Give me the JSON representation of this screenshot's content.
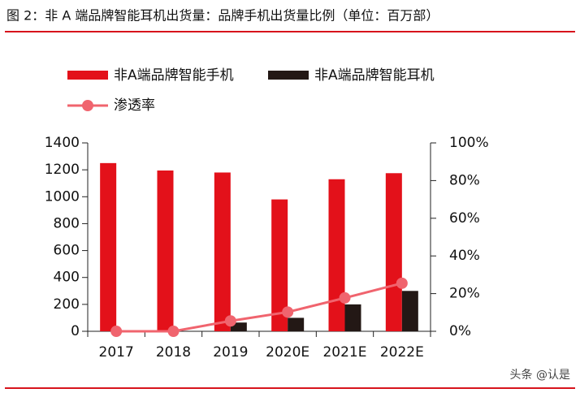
{
  "chart_data": {
    "type": "bar",
    "title": "图 2：非 A 端品牌智能耳机出货量：品牌手机出货量比例（单位：百万部）",
    "categories": [
      "2017",
      "2018",
      "2019",
      "2020E",
      "2021E",
      "2022E"
    ],
    "series": [
      {
        "name": "非A端品牌智能手机",
        "color": "#e3111a",
        "values": [
          1250,
          1195,
          1180,
          980,
          1130,
          1175
        ]
      },
      {
        "name": "非A端品牌智能耳机",
        "color": "#231815",
        "values": [
          0,
          0,
          65,
          100,
          200,
          300
        ]
      },
      {
        "name": "渗透率",
        "type": "line",
        "axis": "y2",
        "color": "#f0646e",
        "values": [
          0,
          0,
          5.5,
          10.2,
          17.7,
          25.5
        ]
      }
    ],
    "ylim": [
      0,
      1400
    ],
    "yticks": [
      0,
      200,
      400,
      600,
      800,
      1000,
      1200,
      1400
    ],
    "y2lim": [
      0,
      100
    ],
    "y2ticks": [
      {
        "value": 0,
        "label": "0%"
      },
      {
        "value": 20,
        "label": "20%"
      },
      {
        "value": 40,
        "label": "40%"
      },
      {
        "value": 60,
        "label": "60%"
      },
      {
        "value": 80,
        "label": "80%"
      },
      {
        "value": 100,
        "label": "100%"
      }
    ],
    "watermark": "头条 @认是"
  }
}
